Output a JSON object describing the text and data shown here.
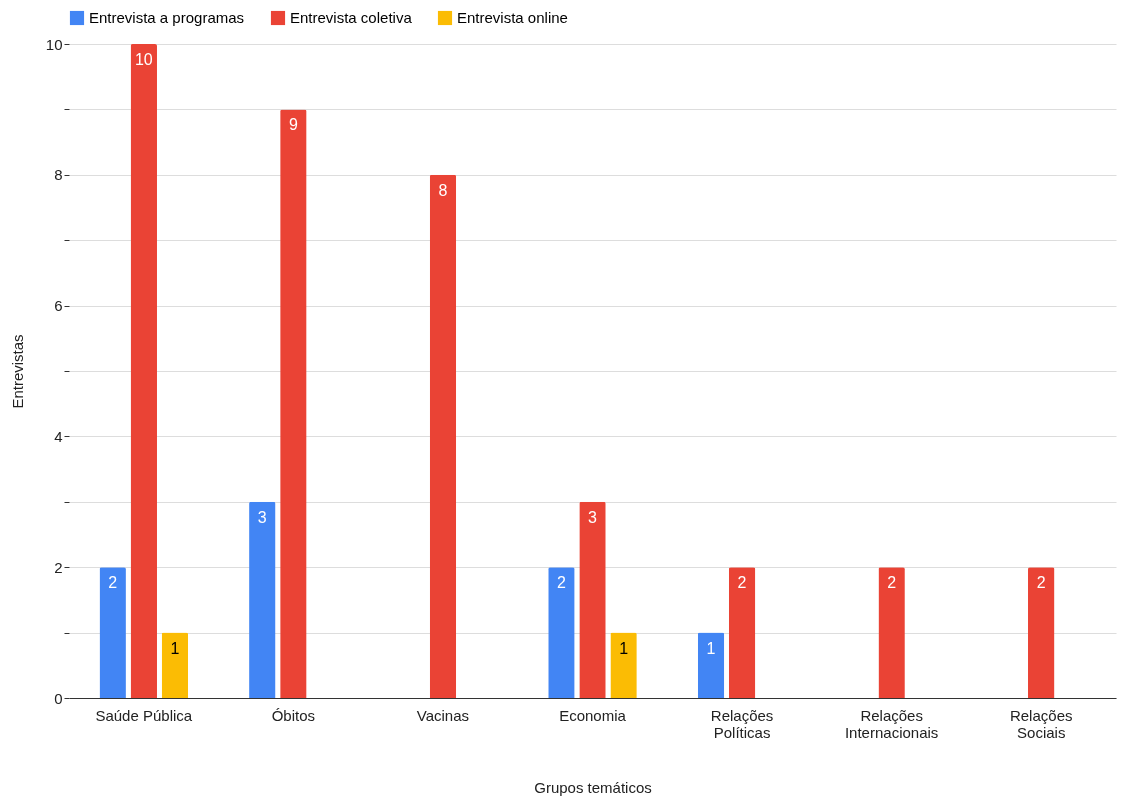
{
  "chart_data": {
    "type": "bar",
    "xlabel": "Grupos temáticos",
    "ylabel": "Entrevistas",
    "categories": [
      "Saúde Pública",
      "Óbitos",
      "Vacinas",
      "Economia",
      "Relações\nPolíticas",
      "Relações\nInternacionais",
      "Relações\nSociais"
    ],
    "series": [
      {
        "name": "Entrevista a programas",
        "color": "#4285f4",
        "values": [
          2,
          3,
          null,
          2,
          1,
          null,
          null
        ]
      },
      {
        "name": "Entrevista coletiva",
        "color": "#ea4335",
        "values": [
          10,
          9,
          8,
          3,
          2,
          2,
          2
        ]
      },
      {
        "name": "Entrevista online",
        "color": "#fbbc04",
        "values": [
          1,
          null,
          null,
          1,
          null,
          null,
          null
        ]
      }
    ],
    "ylim": [
      0,
      10
    ],
    "yticks": [
      0,
      {
        "value": 1,
        "label": null
      },
      2,
      {
        "value": 3,
        "label": null
      },
      4,
      {
        "value": 5,
        "label": null
      },
      6,
      {
        "value": 7,
        "label": null
      },
      8,
      {
        "value": 9,
        "label": null
      },
      10
    ],
    "grid": true,
    "legend": "top",
    "data_labels": true
  }
}
